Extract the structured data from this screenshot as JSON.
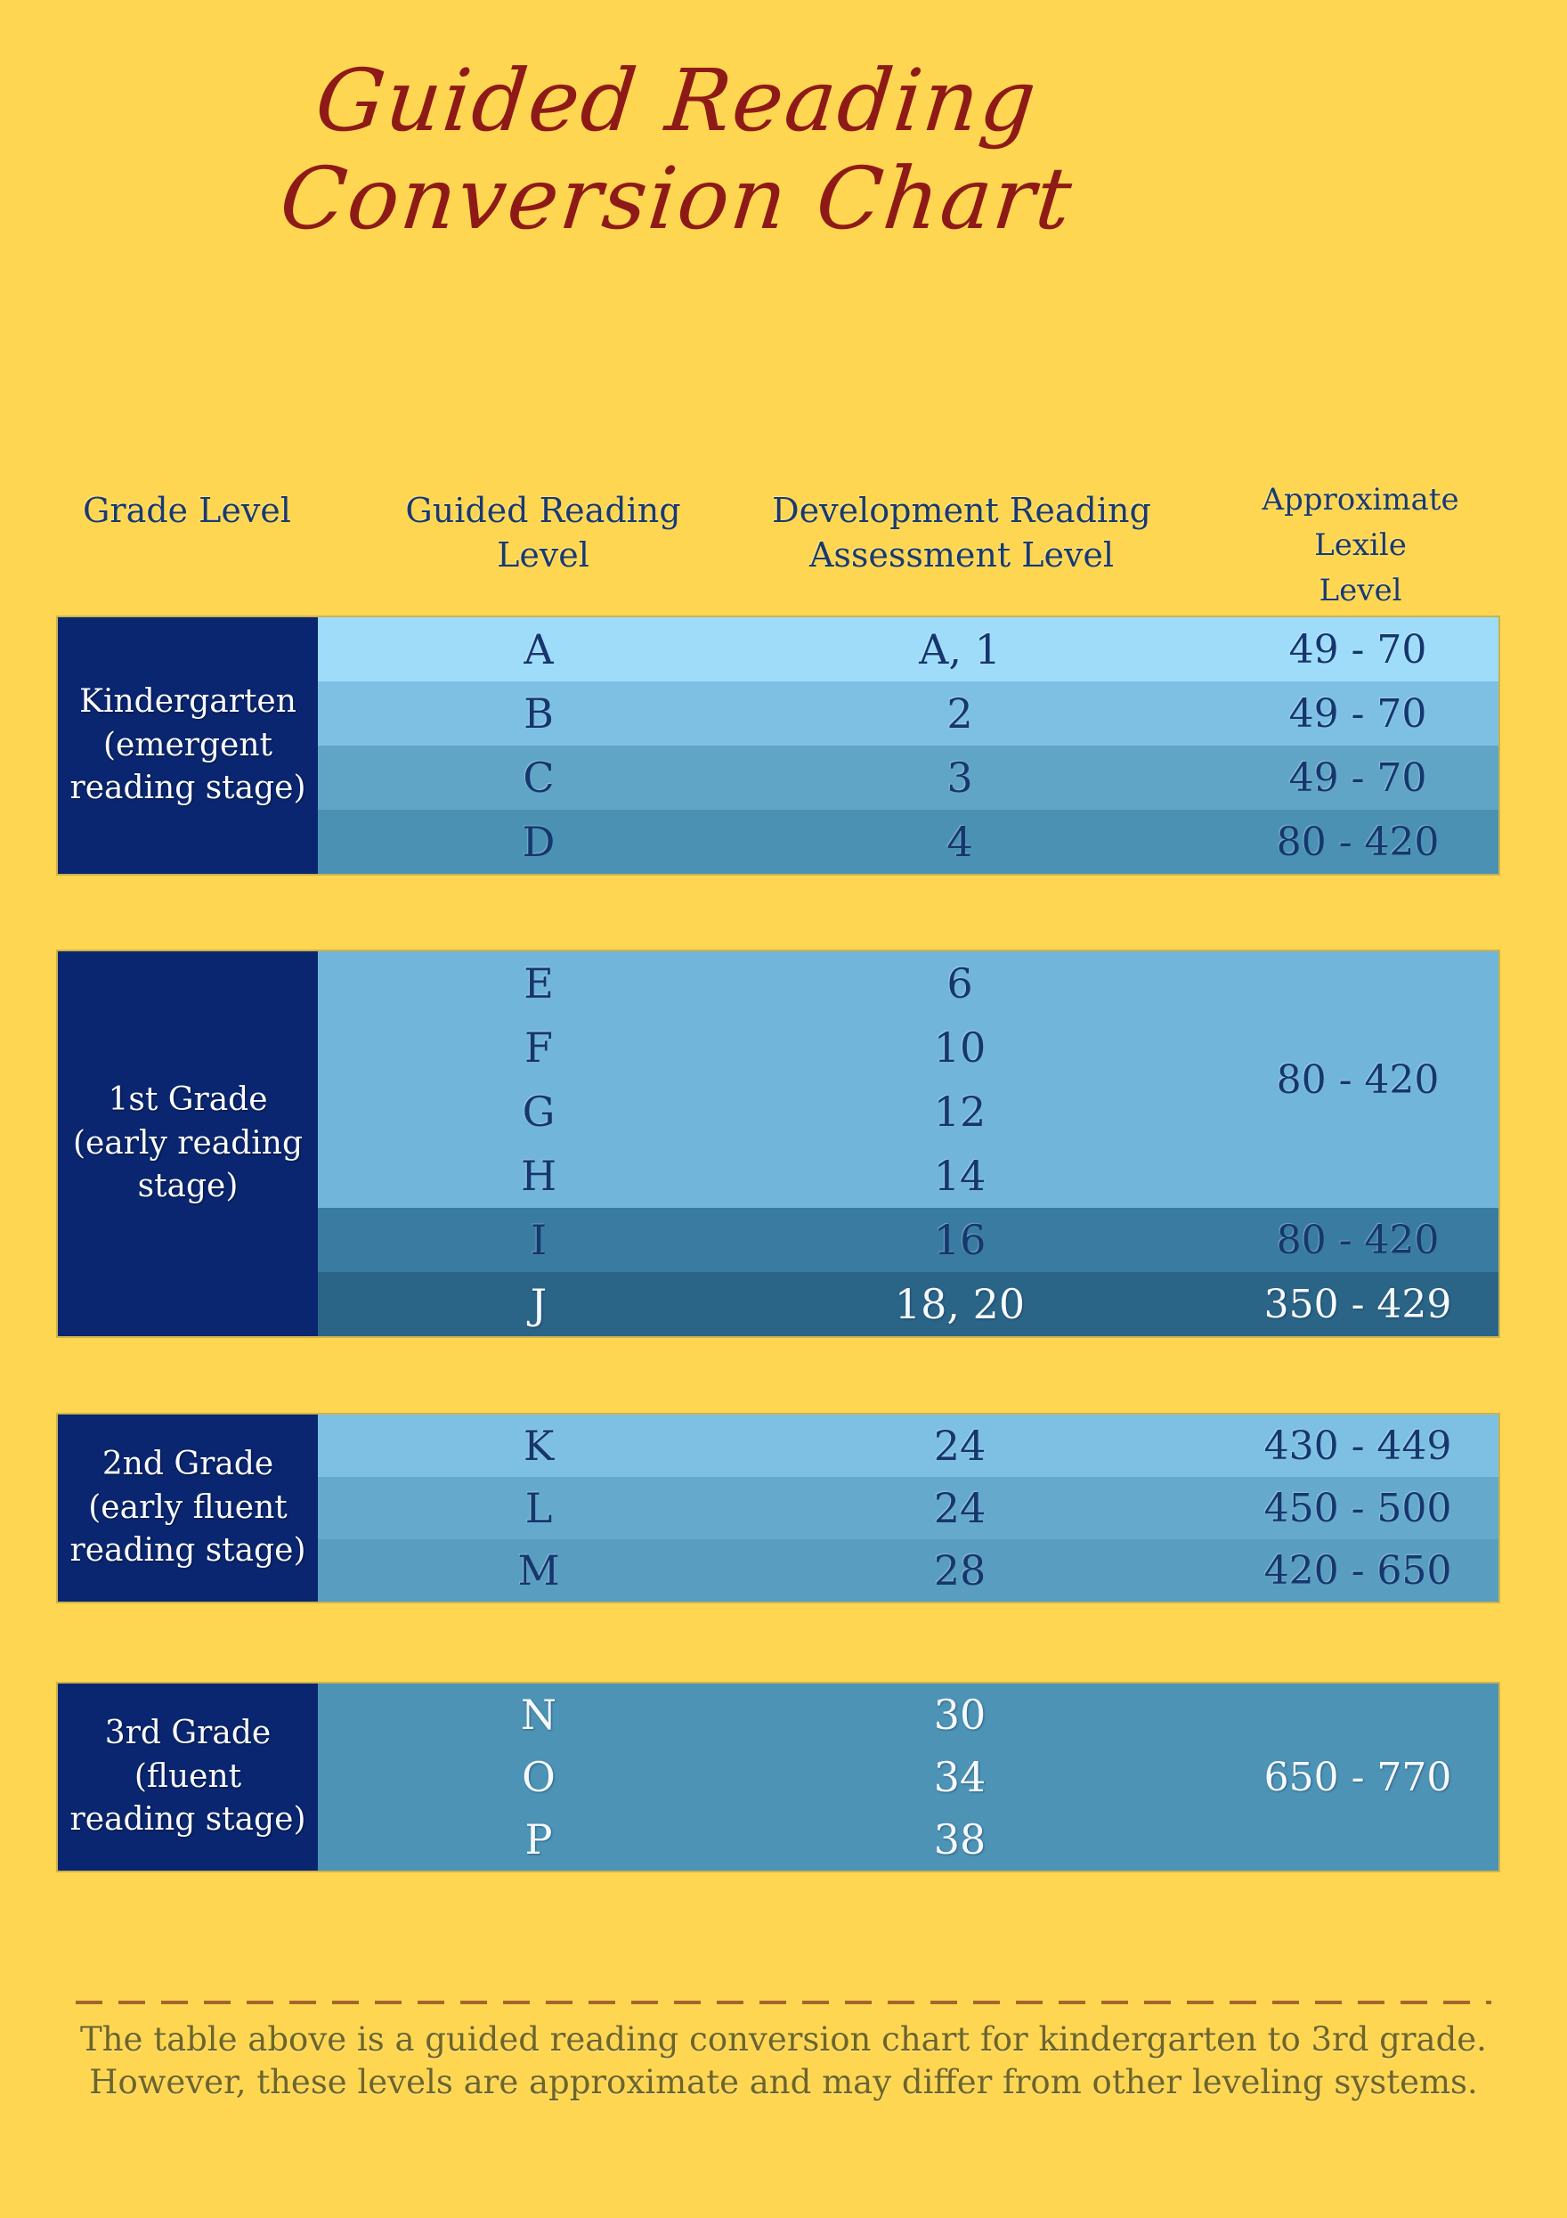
{
  "title": {
    "line1": "Guided Reading",
    "line2": "Conversion Chart",
    "color": "#8E1A18"
  },
  "table": {
    "headers": [
      "Grade Level",
      "Guided Reading\nLevel",
      "Development Reading\nAssessment Level",
      "Approximate\nLexile\nLevel"
    ]
  },
  "colors": {
    "background": "#FFD651",
    "grade_column": "#0A2670",
    "navy_text": "#16366E",
    "white_text": "#F7FAFD",
    "title_red": "#8E1A18",
    "note_olive": "#6D6529",
    "dash_brown": "#A4662E"
  },
  "blocks": [
    {
      "id": "kindergarten",
      "grade_label": "Kindergarten\n(emergent\nreading stage)",
      "segments": [
        {
          "bg": "#9EDCFA",
          "white_text": false,
          "rows": [
            {
              "grl": "A",
              "dra": "A, 1"
            }
          ],
          "lexile": "49 - 70"
        },
        {
          "bg": "#7DC0E3",
          "white_text": false,
          "rows": [
            {
              "grl": "B",
              "dra": "2"
            }
          ],
          "lexile": "49 - 70"
        },
        {
          "bg": "#61A5C6",
          "white_text": false,
          "rows": [
            {
              "grl": "C",
              "dra": "3"
            }
          ],
          "lexile": "49 - 70"
        },
        {
          "bg": "#4A91B4",
          "white_text": false,
          "rows": [
            {
              "grl": "D",
              "dra": "4"
            }
          ],
          "lexile": "80 - 420"
        }
      ]
    },
    {
      "id": "1st-grade",
      "grade_label": "1st Grade\n(early reading\nstage)",
      "segments": [
        {
          "bg": "#72B5DA",
          "white_text": false,
          "rows": [
            {
              "grl": "E",
              "dra": "6"
            },
            {
              "grl": "F",
              "dra": "10"
            },
            {
              "grl": "G",
              "dra": "12"
            },
            {
              "grl": "H",
              "dra": "14"
            }
          ],
          "lexile": "80 - 420"
        },
        {
          "bg": "#3A7CA1",
          "white_text": false,
          "rows": [
            {
              "grl": "I",
              "dra": "16"
            }
          ],
          "lexile": "80 - 420"
        },
        {
          "bg": "#2A6487",
          "white_text": true,
          "rows": [
            {
              "grl": "J",
              "dra": "18, 20"
            }
          ],
          "lexile": "350 - 429"
        }
      ]
    },
    {
      "id": "2nd-grade",
      "grade_label": "2nd Grade\n(early fluent\nreading stage)",
      "segments": [
        {
          "bg": "#7DC0E3",
          "white_text": false,
          "rows": [
            {
              "grl": "K",
              "dra": "24"
            }
          ],
          "lexile": "430 - 449"
        },
        {
          "bg": "#65AACD",
          "white_text": false,
          "rows": [
            {
              "grl": "L",
              "dra": "24"
            }
          ],
          "lexile": "450 - 500"
        },
        {
          "bg": "#599DC0",
          "white_text": false,
          "rows": [
            {
              "grl": "M",
              "dra": "28"
            }
          ],
          "lexile": "420 - 650"
        }
      ]
    },
    {
      "id": "3rd-grade",
      "grade_label": "3rd Grade\n(fluent\nreading stage)",
      "segments": [
        {
          "bg": "#4D93B6",
          "white_text": true,
          "rows": [
            {
              "grl": "N",
              "dra": "30"
            },
            {
              "grl": "O",
              "dra": "34"
            },
            {
              "grl": "P",
              "dra": "38"
            }
          ],
          "lexile": "650 - 770"
        }
      ]
    }
  ],
  "footer": {
    "note_line1": "The table above is a guided reading conversion chart for kindergarten to 3rd grade.",
    "note_line2": "However, these levels are approximate and may differ from other leveling systems."
  },
  "chart_data": {
    "type": "table",
    "title": "Guided Reading Conversion Chart",
    "columns": [
      "Grade Level",
      "Guided Reading Level",
      "Development Reading Assessment Level",
      "Approximate Lexile Level"
    ],
    "rows": [
      [
        "Kindergarten (emergent reading stage)",
        "A",
        "A, 1",
        "49 - 70"
      ],
      [
        "Kindergarten (emergent reading stage)",
        "B",
        "2",
        "49 - 70"
      ],
      [
        "Kindergarten (emergent reading stage)",
        "C",
        "3",
        "49 - 70"
      ],
      [
        "Kindergarten (emergent reading stage)",
        "D",
        "4",
        "80 - 420"
      ],
      [
        "1st Grade (early reading stage)",
        "E",
        "6",
        "80 - 420"
      ],
      [
        "1st Grade (early reading stage)",
        "F",
        "10",
        "80 - 420"
      ],
      [
        "1st Grade (early reading stage)",
        "G",
        "12",
        "80 - 420"
      ],
      [
        "1st Grade (early reading stage)",
        "H",
        "14",
        "80 - 420"
      ],
      [
        "1st Grade (early reading stage)",
        "I",
        "16",
        "80 - 420"
      ],
      [
        "1st Grade (early reading stage)",
        "J",
        "18, 20",
        "350 - 429"
      ],
      [
        "2nd Grade (early fluent reading stage)",
        "K",
        "24",
        "430 - 449"
      ],
      [
        "2nd Grade (early fluent reading stage)",
        "L",
        "24",
        "450 - 500"
      ],
      [
        "2nd Grade (early fluent reading stage)",
        "M",
        "28",
        "420 - 650"
      ],
      [
        "3rd Grade (fluent reading stage)",
        "N",
        "30",
        "650 - 770"
      ],
      [
        "3rd Grade (fluent reading stage)",
        "O",
        "34",
        "650 - 770"
      ],
      [
        "3rd Grade (fluent reading stage)",
        "P",
        "38",
        "650 - 770"
      ]
    ]
  }
}
